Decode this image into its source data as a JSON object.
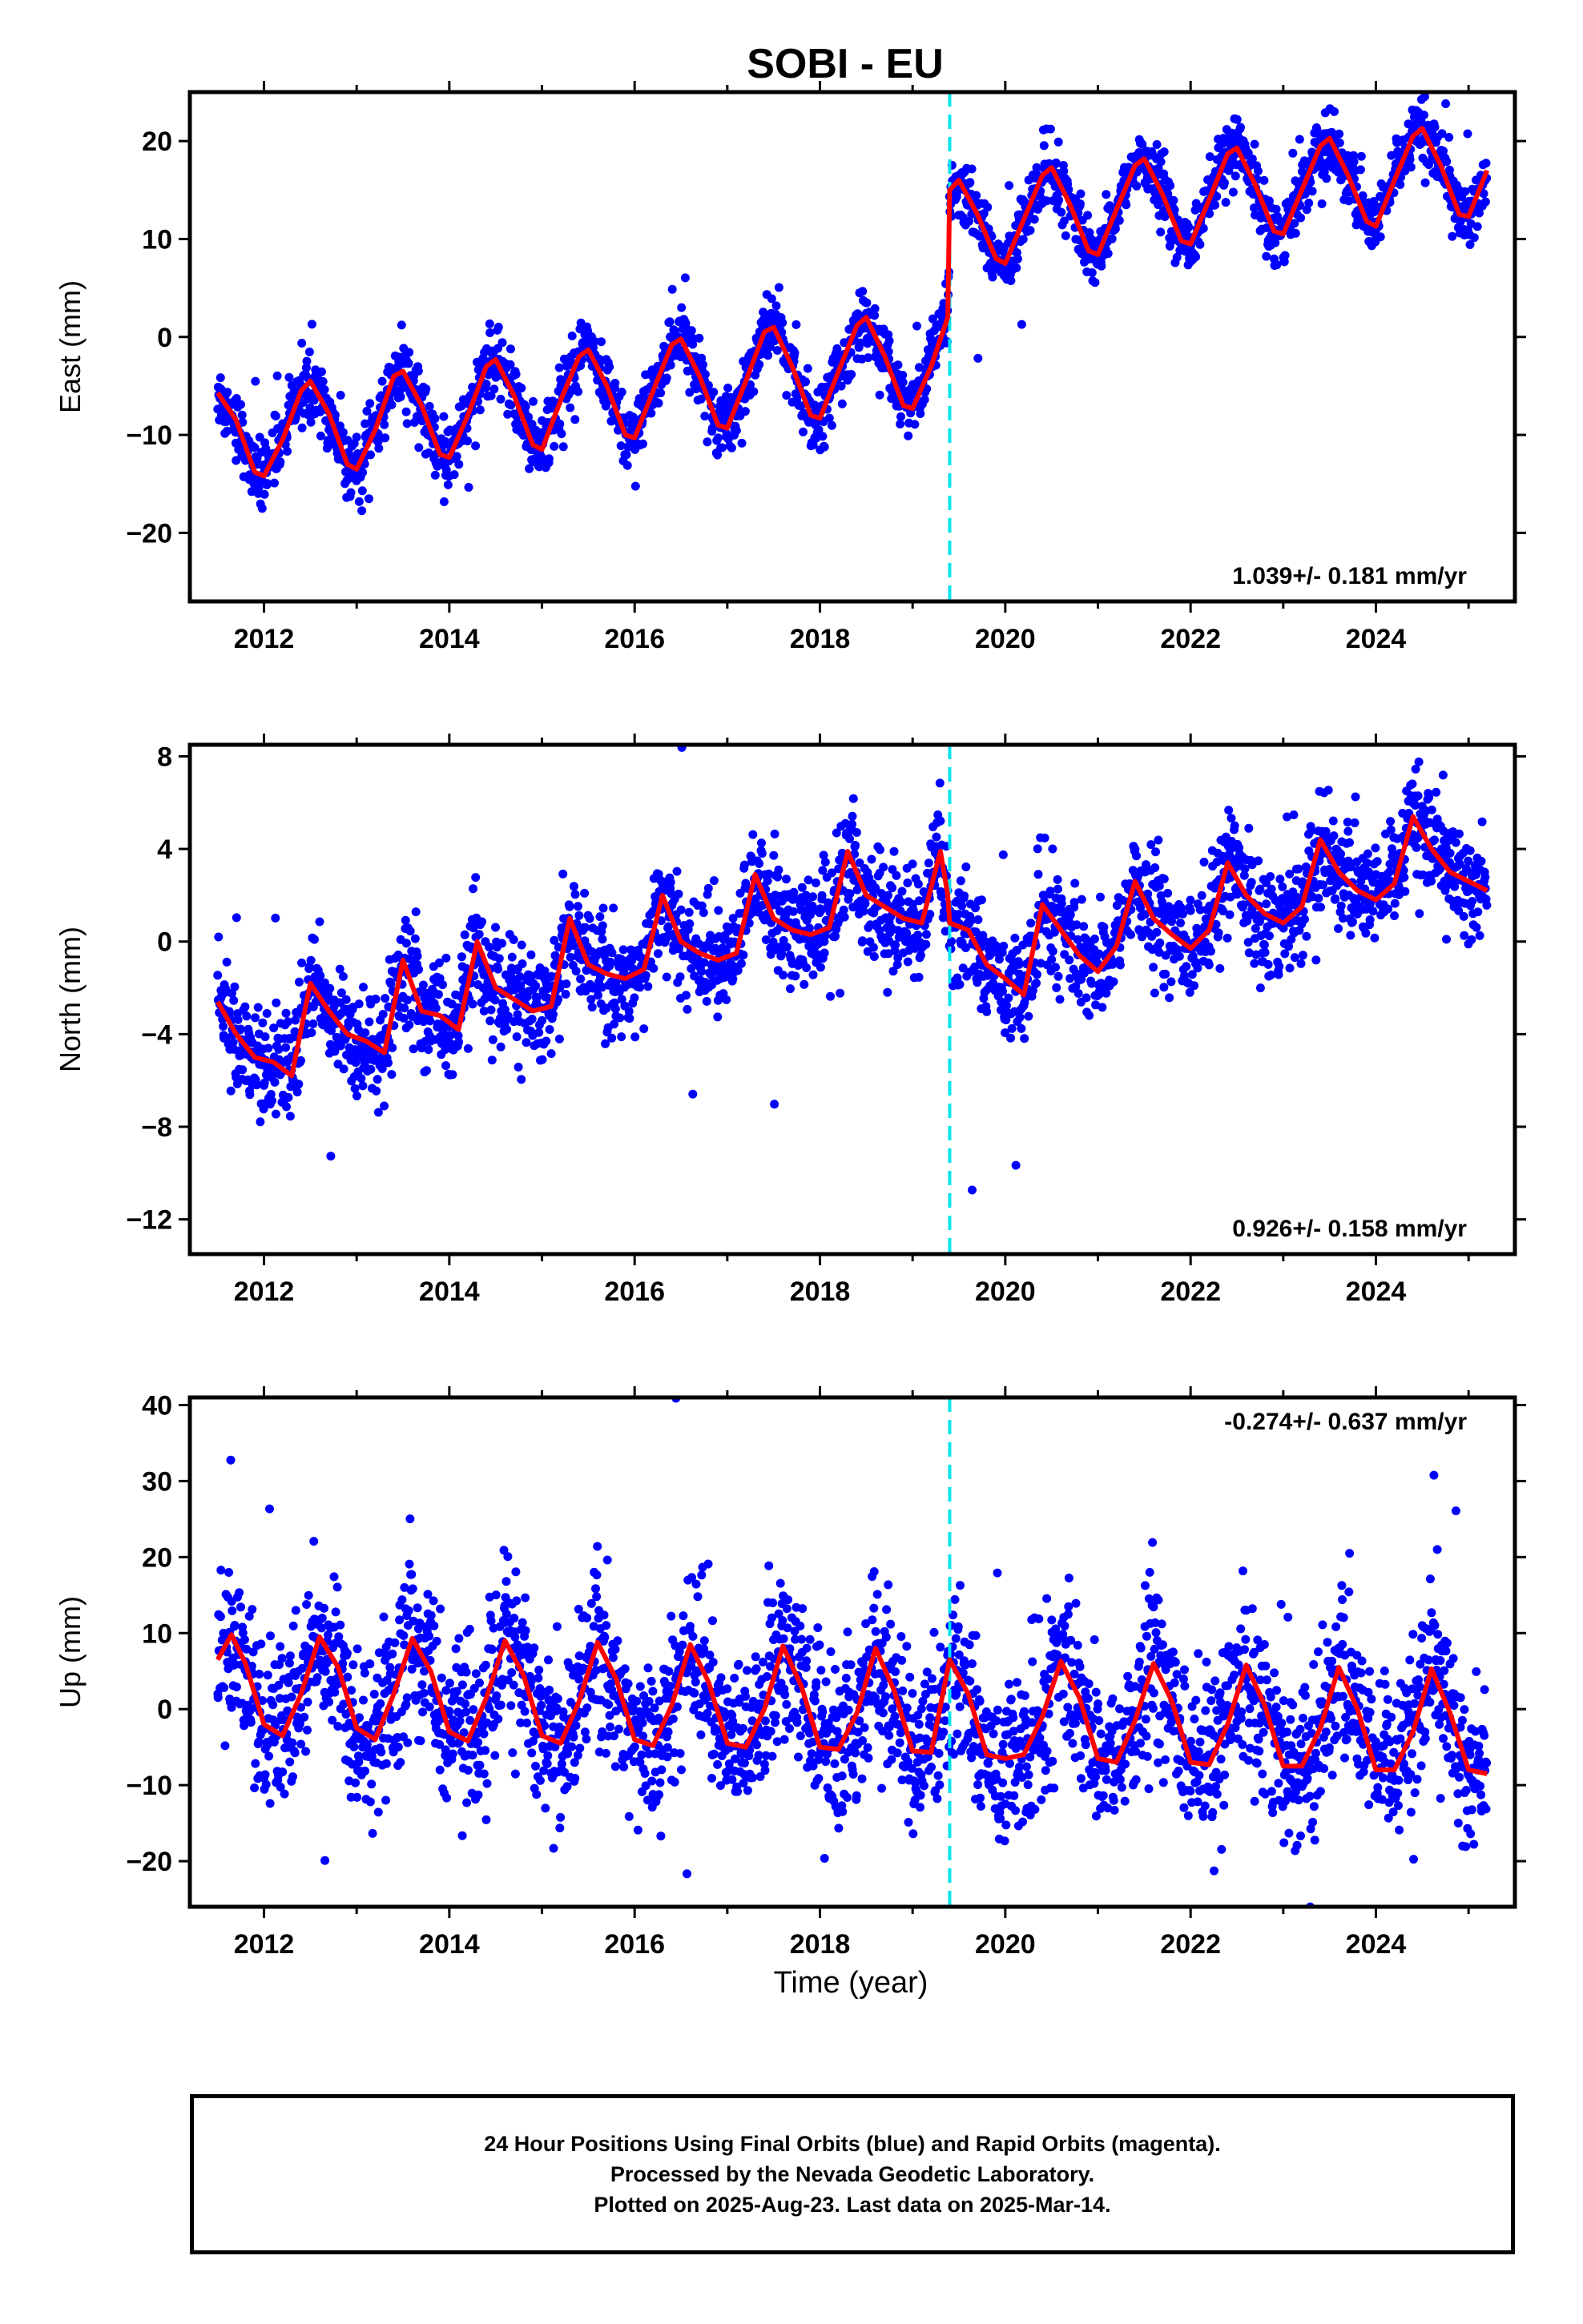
{
  "title": "SOBI - EU",
  "xlabel": "Time (year)",
  "footer": {
    "line1": "24 Hour Positions Using Final Orbits (blue) and Rapid Orbits (magenta).",
    "line2": "Processed by the Nevada Geodetic Laboratory.",
    "line3": "Plotted on 2025-Aug-23. Last data on 2025-Mar-14."
  },
  "colors": {
    "points": "#0000ff",
    "model": "#ff0000",
    "event_line": "#00e5ee",
    "frame": "#000000"
  },
  "chart_data": [
    {
      "type": "scatter",
      "ylabel": "East (mm)",
      "xlim": [
        2011.2,
        2025.5
      ],
      "ylim": [
        -27,
        25
      ],
      "yticks": [
        -20,
        -10,
        0,
        10,
        20
      ],
      "xticks": [
        2012,
        2014,
        2016,
        2018,
        2020,
        2022,
        2024
      ],
      "rate_label": "1.039+/- 0.181 mm/yr",
      "rate_position": "bottom-right",
      "event_x": 2019.4,
      "grid": false,
      "model": {
        "x": [
          2011.5,
          2011.7,
          2011.9,
          2012.0,
          2012.2,
          2012.4,
          2012.5,
          2012.7,
          2012.9,
          2013.0,
          2013.2,
          2013.4,
          2013.5,
          2013.7,
          2013.9,
          2014.0,
          2014.2,
          2014.4,
          2014.5,
          2014.7,
          2014.9,
          2015.0,
          2015.2,
          2015.4,
          2015.5,
          2015.7,
          2015.9,
          2016.0,
          2016.2,
          2016.4,
          2016.5,
          2016.7,
          2016.9,
          2017.0,
          2017.2,
          2017.4,
          2017.5,
          2017.7,
          2017.9,
          2018.0,
          2018.2,
          2018.4,
          2018.5,
          2018.7,
          2018.9,
          2019.0,
          2019.2,
          2019.38,
          2019.4,
          2019.5,
          2019.7,
          2019.9,
          2020.0,
          2020.2,
          2020.4,
          2020.5,
          2020.7,
          2020.9,
          2021.0,
          2021.2,
          2021.4,
          2021.5,
          2021.7,
          2021.9,
          2022.0,
          2022.2,
          2022.4,
          2022.5,
          2022.7,
          2022.9,
          2023.0,
          2023.2,
          2023.4,
          2023.5,
          2023.7,
          2023.9,
          2024.0,
          2024.2,
          2024.4,
          2024.5,
          2024.7,
          2024.9,
          2025.0,
          2025.2
        ],
        "y": [
          -5.7,
          -8.5,
          -13.8,
          -14.2,
          -10.5,
          -5.5,
          -4.5,
          -7.8,
          -13.0,
          -13.5,
          -9.5,
          -4.0,
          -3.5,
          -7.0,
          -12.0,
          -12.3,
          -8.0,
          -3.0,
          -2.3,
          -6.0,
          -11.0,
          -11.5,
          -6.5,
          -2.0,
          -1.3,
          -5.0,
          -10.0,
          -10.3,
          -5.5,
          -0.8,
          -0.2,
          -4.0,
          -9.0,
          -9.3,
          -4.5,
          0.5,
          1.0,
          -3.0,
          -8.0,
          -8.3,
          -3.5,
          1.2,
          2.0,
          -2.0,
          -7.0,
          -7.3,
          -3.0,
          2.0,
          15.0,
          16.0,
          12.5,
          8.0,
          7.5,
          12.0,
          16.5,
          17.3,
          13.5,
          8.8,
          8.4,
          13.0,
          17.5,
          18.2,
          14.5,
          9.8,
          9.5,
          14.0,
          18.7,
          19.3,
          15.5,
          10.8,
          10.5,
          15.0,
          19.5,
          20.3,
          16.5,
          11.8,
          11.3,
          16.0,
          20.5,
          21.3,
          17.5,
          12.5,
          12.3,
          17.0
        ]
      },
      "points_description_free": true,
      "point_spread": 1.6
    },
    {
      "type": "scatter",
      "ylabel": "North (mm)",
      "xlim": [
        2011.2,
        2025.5
      ],
      "ylim": [
        -13.5,
        8.5
      ],
      "yticks": [
        -12,
        -8,
        -4,
        0,
        4,
        8
      ],
      "xticks": [
        2012,
        2014,
        2016,
        2018,
        2020,
        2022,
        2024
      ],
      "rate_label": "0.926+/- 0.158 mm/yr",
      "rate_position": "bottom-right",
      "event_x": 2019.4,
      "grid": false,
      "model": {
        "x": [
          2011.5,
          2011.7,
          2011.9,
          2012.1,
          2012.3,
          2012.5,
          2012.7,
          2012.9,
          2013.1,
          2013.3,
          2013.5,
          2013.7,
          2013.9,
          2014.1,
          2014.3,
          2014.5,
          2014.7,
          2014.9,
          2015.1,
          2015.3,
          2015.5,
          2015.7,
          2015.9,
          2016.1,
          2016.3,
          2016.5,
          2016.7,
          2016.9,
          2017.1,
          2017.3,
          2017.5,
          2017.7,
          2017.9,
          2018.1,
          2018.3,
          2018.5,
          2018.7,
          2018.9,
          2019.1,
          2019.3,
          2019.38,
          2019.4,
          2019.6,
          2019.8,
          2020.0,
          2020.2,
          2020.4,
          2020.6,
          2020.8,
          2021.0,
          2021.2,
          2021.4,
          2021.6,
          2021.8,
          2022.0,
          2022.2,
          2022.4,
          2022.6,
          2022.8,
          2023.0,
          2023.2,
          2023.4,
          2023.6,
          2023.8,
          2024.0,
          2024.2,
          2024.4,
          2024.6,
          2024.8,
          2025.0,
          2025.2
        ],
        "y": [
          -2.6,
          -4.0,
          -5.0,
          -5.2,
          -5.8,
          -1.8,
          -3.0,
          -4.0,
          -4.3,
          -4.8,
          -0.8,
          -3.0,
          -3.2,
          -3.8,
          0.0,
          -2.0,
          -2.5,
          -3.0,
          -2.8,
          1.0,
          -1.0,
          -1.4,
          -1.6,
          -1.2,
          2.0,
          0.0,
          -0.5,
          -0.8,
          -0.5,
          2.9,
          1.0,
          0.5,
          0.3,
          0.6,
          3.9,
          2.0,
          1.5,
          1.0,
          0.8,
          3.9,
          2.0,
          0.8,
          0.5,
          -1.0,
          -1.6,
          -2.3,
          1.6,
          0.5,
          -0.6,
          -1.3,
          -0.2,
          2.6,
          1.0,
          0.3,
          -0.3,
          0.5,
          3.4,
          2.0,
          1.2,
          0.8,
          1.5,
          4.4,
          3.0,
          2.2,
          1.8,
          2.5,
          5.4,
          4.0,
          3.0,
          2.6,
          2.2
        ]
      },
      "point_spread": 1.2
    },
    {
      "type": "scatter",
      "ylabel": "Up (mm)",
      "xlim": [
        2011.2,
        2025.5
      ],
      "ylim": [
        -26,
        41
      ],
      "yticks": [
        -20,
        -10,
        0,
        10,
        20,
        30,
        40
      ],
      "xticks": [
        2012,
        2014,
        2016,
        2018,
        2020,
        2022,
        2024
      ],
      "rate_label": "-0.274+/- 0.637 mm/yr",
      "rate_position": "top-right",
      "event_x": 2019.4,
      "grid": false,
      "model": {
        "x": [
          2011.5,
          2011.65,
          2011.8,
          2012.0,
          2012.2,
          2012.4,
          2012.6,
          2012.8,
          2013.0,
          2013.2,
          2013.4,
          2013.6,
          2013.8,
          2014.0,
          2014.2,
          2014.4,
          2014.6,
          2014.8,
          2015.0,
          2015.2,
          2015.4,
          2015.6,
          2015.8,
          2016.0,
          2016.2,
          2016.4,
          2016.6,
          2016.8,
          2017.0,
          2017.2,
          2017.4,
          2017.6,
          2017.8,
          2018.0,
          2018.2,
          2018.4,
          2018.6,
          2018.8,
          2019.0,
          2019.2,
          2019.4,
          2019.6,
          2019.8,
          2020.0,
          2020.2,
          2020.4,
          2020.6,
          2020.8,
          2021.0,
          2021.2,
          2021.4,
          2021.6,
          2021.8,
          2022.0,
          2022.2,
          2022.4,
          2022.6,
          2022.8,
          2023.0,
          2023.2,
          2023.4,
          2023.6,
          2023.8,
          2024.0,
          2024.2,
          2024.4,
          2024.6,
          2024.8,
          2025.0,
          2025.2
        ],
        "y": [
          6.5,
          9.8,
          6.0,
          -2.0,
          -3.5,
          2.0,
          9.5,
          5.5,
          -2.5,
          -4.0,
          2.0,
          9.3,
          5.0,
          -3.0,
          -4.2,
          1.5,
          9.0,
          4.5,
          -3.5,
          -4.5,
          1.0,
          8.8,
          4.0,
          -4.0,
          -4.8,
          0.5,
          8.5,
          3.5,
          -4.5,
          -5.0,
          0.0,
          8.3,
          3.0,
          -5.0,
          -5.3,
          -0.5,
          8.0,
          2.5,
          -5.5,
          -5.7,
          6.5,
          2.0,
          -6.0,
          -6.5,
          -6.0,
          -1.0,
          6.3,
          1.5,
          -6.5,
          -7.0,
          -1.5,
          6.0,
          1.0,
          -7.0,
          -7.3,
          -2.0,
          5.8,
          0.5,
          -7.5,
          -7.5,
          -2.5,
          5.5,
          0.0,
          -8.0,
          -8.0,
          -3.0,
          5.3,
          -0.5,
          -8.0,
          -8.5
        ]
      },
      "point_spread": 5.5
    }
  ]
}
